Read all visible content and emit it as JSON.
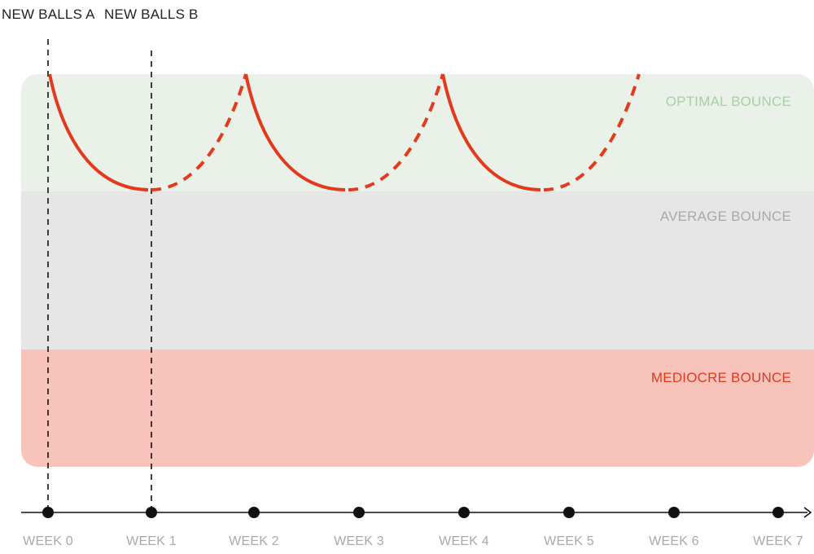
{
  "labels": {
    "new_balls_a": "NEW BALLS A",
    "new_balls_b": "NEW BALLS B"
  },
  "zones": [
    {
      "id": "optimal",
      "label": "OPTIMAL BOUNCE",
      "fill": "#e9f1e8",
      "text_color": "#a8d0a4"
    },
    {
      "id": "average",
      "label": "AVERAGE BOUNCE",
      "fill": "#e6e6e6",
      "text_color": "#a9a9a9"
    },
    {
      "id": "mediocre",
      "label": "MEDIOCRE BOUNCE",
      "fill": "#f8c3bb",
      "text_color": "#e5391e"
    }
  ],
  "timeline": {
    "weeks": [
      "WEEK 0",
      "WEEK 1",
      "WEEK 2",
      "WEEK 3",
      "WEEK 4",
      "WEEK 5",
      "WEEK 6",
      "WEEK 7"
    ]
  },
  "colors": {
    "curve": "#e5391e",
    "axis": "#111111",
    "marker": "#111111"
  }
}
